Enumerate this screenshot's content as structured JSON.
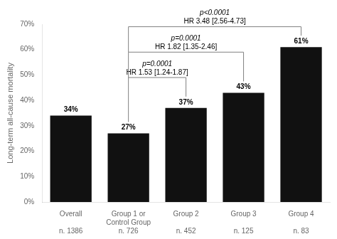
{
  "chart_data": {
    "type": "bar",
    "categories": [
      "Overall",
      "Group 1 or Control Group",
      "Group 2",
      "Group 3",
      "Group 4"
    ],
    "values": [
      34,
      27,
      37,
      43,
      61
    ],
    "value_labels": [
      "34%",
      "27%",
      "37%",
      "43%",
      "61%"
    ],
    "data_labels": true,
    "sample_sizes": [
      "n. 1386",
      "n. 726",
      "n. 452",
      "n. 125",
      "n. 83"
    ],
    "color": "#111111",
    "ylabel": "Long-term all-cause mortality",
    "ylim": [
      0,
      70
    ],
    "yticks": [
      {
        "value": 0,
        "label": "0%"
      },
      {
        "value": 10,
        "label": "10%"
      },
      {
        "value": 20,
        "label": "20%"
      },
      {
        "value": 30,
        "label": "30%"
      },
      {
        "value": 40,
        "label": "40%"
      },
      {
        "value": 50,
        "label": "50%"
      },
      {
        "value": 60,
        "label": "60%"
      },
      {
        "value": 70,
        "label": "70%"
      }
    ],
    "grid": false,
    "annotations": [
      {
        "text": "HR 1.53 [1.24-1.87]",
        "subtext": "p=0.0001",
        "between": [
          "Group 1 or Control Group",
          "Group 2"
        ],
        "y": 49
      },
      {
        "text": "HR 1.82 [1.35-2.46]",
        "subtext": "p=0.0001",
        "between": [
          "Group 1 or Control Group",
          "Group 3"
        ],
        "y": 59
      },
      {
        "text": "HR 3.48 [2.56-4.73]",
        "subtext": "p<0.0001",
        "between": [
          "Group 1 or Control Group",
          "Group 4"
        ],
        "y": 69
      }
    ]
  }
}
